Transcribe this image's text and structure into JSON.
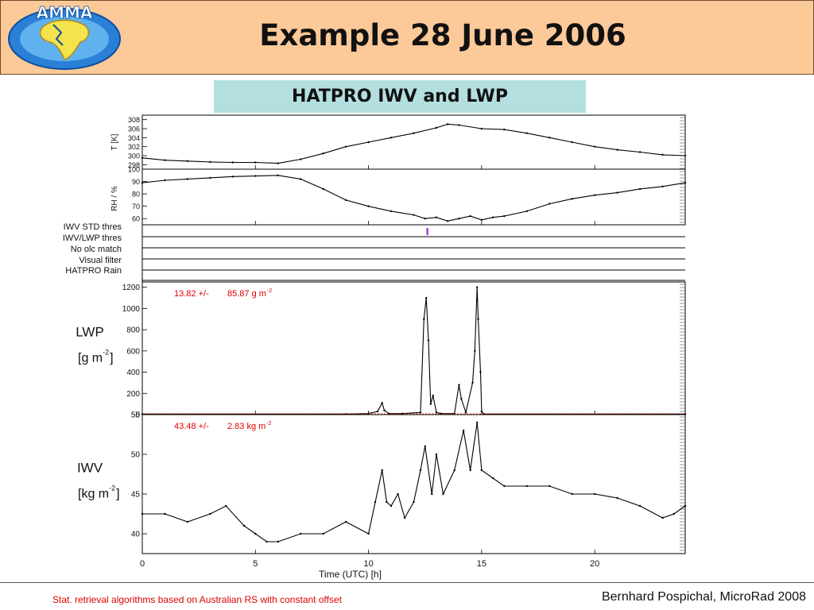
{
  "slide": {
    "title": "Example 28 June 2006",
    "subtitle": "HATPRO IWV and LWP",
    "logo_text": "AMMA",
    "footer_left": "Stat. retrieval algorithms based on Australian RS with constant offset",
    "footer_right": "Bernhard Pospichal, MicroRad 2008"
  },
  "colors": {
    "header_bg": "#fcc998",
    "subtitle_bg": "#b4dfe0",
    "annotation": "#e00000",
    "flag_mark": "#8a1fd0",
    "line": "#000000"
  },
  "chart_data": [
    {
      "type": "line",
      "panel": "temperature",
      "ylabel": "T [K]",
      "xlim": [
        0,
        24
      ],
      "ylim": [
        297,
        309
      ],
      "yticks": [
        298,
        300,
        302,
        304,
        306,
        308
      ],
      "series": [
        {
          "x": [
            0,
            1,
            2,
            3,
            4,
            5,
            6,
            7,
            8,
            9,
            10,
            11,
            12,
            13,
            13.5,
            14,
            15,
            16,
            17,
            18,
            19,
            20,
            21,
            22,
            23,
            24
          ],
          "y": [
            299.5,
            299,
            298.8,
            298.6,
            298.5,
            298.5,
            298.3,
            299.2,
            300.5,
            302,
            303,
            304,
            305,
            306.2,
            307,
            306.8,
            306,
            305.8,
            305,
            304,
            303,
            302,
            301.3,
            300.8,
            300.2,
            300
          ]
        }
      ]
    },
    {
      "type": "line",
      "panel": "relative-humidity",
      "ylabel": "RH / %",
      "xlim": [
        0,
        24
      ],
      "ylim": [
        55,
        100
      ],
      "yticks": [
        60,
        70,
        80,
        90,
        100
      ],
      "series": [
        {
          "x": [
            0,
            1,
            2,
            3,
            4,
            5,
            6,
            7,
            8,
            9,
            10,
            11,
            12,
            12.5,
            13,
            13.5,
            14,
            14.5,
            15,
            15.5,
            16,
            17,
            18,
            19,
            20,
            21,
            22,
            23,
            24
          ],
          "y": [
            89,
            91,
            92,
            93,
            94,
            94.5,
            95,
            92,
            84,
            75,
            70,
            66,
            63,
            60,
            61,
            58,
            60,
            62,
            59,
            61,
            62,
            66,
            72,
            76,
            79,
            81,
            84,
            86,
            89
          ]
        }
      ]
    },
    {
      "type": "table",
      "panel": "flags",
      "rows": [
        "IWV STD thres",
        "IWV/LWP thres",
        "No olc match",
        "Visual filter",
        "HATPRO Rain"
      ],
      "marks": [
        {
          "row": "IWV STD thres",
          "x": 12.6
        }
      ]
    },
    {
      "type": "line",
      "panel": "lwp",
      "ylabel": "LWP",
      "yunit": "[g m",
      "yunit_sup": "-2",
      "yunit_close": "]",
      "annotation_value": "13.82 +/-",
      "annotation_std": "85.87 g m",
      "annotation_sup": "-2",
      "xlim": [
        0,
        24
      ],
      "ylim": [
        0,
        1250
      ],
      "yticks": [
        0,
        200,
        400,
        600,
        800,
        1000,
        1200
      ],
      "series": [
        {
          "x": [
            0,
            9,
            10,
            10.4,
            10.6,
            10.7,
            10.9,
            11.5,
            12.3,
            12.45,
            12.55,
            12.65,
            12.75,
            12.85,
            13.0,
            13.2,
            13.8,
            14.0,
            14.1,
            14.3,
            14.6,
            14.7,
            14.8,
            14.85,
            14.95,
            15.0,
            15.1,
            24
          ],
          "y": [
            5,
            5,
            10,
            30,
            110,
            40,
            10,
            10,
            20,
            900,
            1100,
            700,
            100,
            180,
            20,
            10,
            10,
            280,
            150,
            20,
            300,
            600,
            1200,
            900,
            400,
            30,
            5,
            5
          ]
        }
      ]
    },
    {
      "type": "line",
      "panel": "iwv",
      "ylabel": "IWV",
      "yunit": "[kg m",
      "yunit_sup": "-2",
      "yunit_close": "]",
      "annotation_value": "43.48 +/-",
      "annotation_std": "2.83 kg m",
      "annotation_sup": "-2",
      "xlim": [
        0,
        24
      ],
      "ylim": [
        37.5,
        55
      ],
      "yticks": [
        40,
        45,
        50,
        55
      ],
      "xticks": [
        0,
        5,
        10,
        15,
        20
      ],
      "xlabel": "Time (UTC) [h]",
      "series": [
        {
          "x": [
            0,
            1,
            2,
            3,
            3.7,
            4.5,
            5,
            5.5,
            6,
            7,
            8,
            9,
            10,
            10.3,
            10.6,
            10.8,
            11,
            11.3,
            11.6,
            12,
            12.3,
            12.5,
            12.8,
            13,
            13.3,
            13.8,
            14.2,
            14.5,
            14.8,
            15,
            15.5,
            16,
            17,
            18,
            19,
            20,
            21,
            22,
            23,
            23.5,
            24
          ],
          "y": [
            42.5,
            42.5,
            41.5,
            42.5,
            43.5,
            41,
            40,
            39,
            39,
            40,
            40,
            41.5,
            40,
            44,
            48,
            44,
            43.5,
            45,
            42,
            44,
            48,
            51,
            45,
            50,
            45,
            48,
            53,
            48,
            54,
            48,
            47,
            46,
            46,
            46,
            45,
            45,
            44.5,
            43.5,
            42,
            42.5,
            43.5
          ]
        }
      ]
    }
  ]
}
